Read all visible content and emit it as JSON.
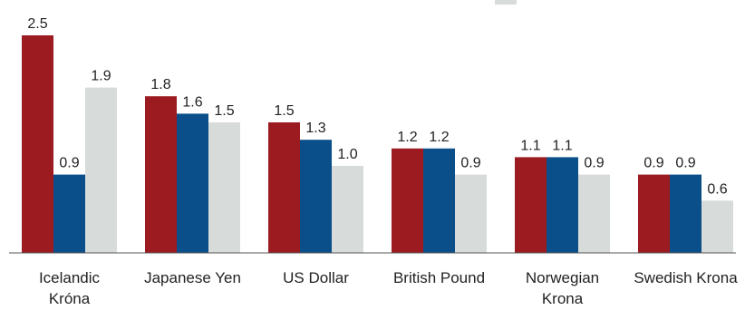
{
  "chart_data": {
    "type": "bar",
    "categories": [
      [
        "Icelandic",
        "Króna"
      ],
      [
        "Japanese Yen"
      ],
      [
        "US Dollar"
      ],
      [
        "British Pound"
      ],
      [
        "Norwegian",
        "Krona"
      ],
      [
        "Swedish Krona"
      ]
    ],
    "series": [
      {
        "color": "#9b1b20",
        "values": [
          2.5,
          1.8,
          1.5,
          1.2,
          1.1,
          0.9
        ]
      },
      {
        "color": "#0b4f8a",
        "values": [
          0.9,
          1.6,
          1.3,
          1.2,
          1.1,
          0.9
        ]
      },
      {
        "color": "#d7dbda",
        "values": [
          1.9,
          1.5,
          1.0,
          0.9,
          0.9,
          0.6
        ]
      }
    ],
    "value_labels": [
      [
        "2.5",
        "1.8",
        "1.5",
        "1.2",
        "1.1",
        "0.9"
      ],
      [
        "0.9",
        "1.6",
        "1.3",
        "1.2",
        "1.1",
        "0.9"
      ],
      [
        "1.9",
        "1.5",
        "1.0",
        "0.9",
        "0.9",
        "0.6"
      ]
    ],
    "ylim": [
      0,
      2.5
    ],
    "grid": false,
    "legend": "top-right (cropped)"
  }
}
